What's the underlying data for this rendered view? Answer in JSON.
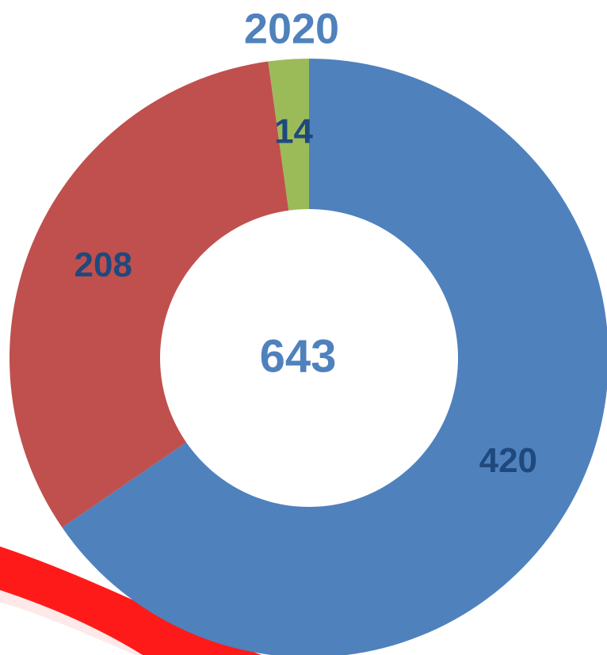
{
  "chart_data": {
    "type": "donut",
    "title": "2020",
    "total": 643,
    "values": [
      420,
      208,
      14
    ],
    "colors": [
      "#4f81bd",
      "#c0504d",
      "#9bbb59"
    ],
    "label_color": "#1f497d",
    "start_angle": 0,
    "direction": "clockwise"
  }
}
